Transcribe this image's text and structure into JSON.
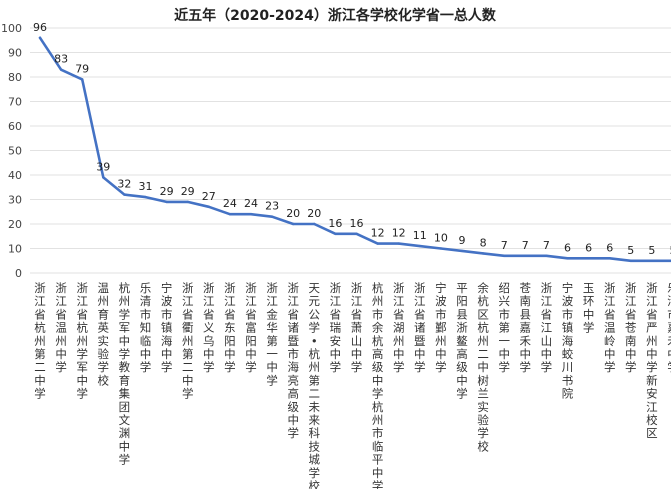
{
  "chart_data": {
    "type": "line",
    "title": "近五年（2020-2024）浙江各学校化学省一总人数",
    "xlabel": "",
    "ylabel": "",
    "ylim": [
      0,
      100
    ],
    "yticks": [
      0,
      10,
      20,
      30,
      40,
      50,
      60,
      70,
      80,
      90,
      100
    ],
    "grid": true,
    "legend": "none",
    "colors": {
      "line": "#4472c4"
    },
    "categories": [
      "浙江省杭州第二中学",
      "浙江省温州中学",
      "浙江省杭州学军中学",
      "温州育英实验学校",
      "杭州学军中学教育集团文渊中学",
      "乐清市知临中学",
      "宁波市镇海中学",
      "浙江省衢州第二中学",
      "浙江省义乌中学",
      "浙江省东阳中学",
      "浙江省富阳中学",
      "浙江金华第一中学",
      "浙江省诸暨市海亮高级中学",
      "天元公学•杭州第二未来科技城学校",
      "浙江省瑞安中学",
      "浙江省萧山中学",
      "杭州市余杭高级中学杭州市临平中学",
      "浙江省湖州中学",
      "浙江省诸暨中学",
      "宁波市鄞州中学",
      "平阳县浙鳌高级中学",
      "余杭区杭州二中树兰实验学校",
      "绍兴市第一中学",
      "苍南县嘉禾中学",
      "浙江省江山中学",
      "宁波市镇海蛟川书院",
      "玉环中学",
      "浙江省温岭中学",
      "浙江省苍南中学",
      "浙江省严州中学新安江校区",
      "乐清市嘉禾中学"
    ],
    "series": [
      {
        "values": [
          96,
          83,
          79,
          39,
          32,
          31,
          29,
          29,
          27,
          24,
          24,
          23,
          20,
          20,
          16,
          16,
          12,
          12,
          11,
          10,
          9,
          8,
          7,
          7,
          7,
          6,
          6,
          6,
          5,
          5,
          5
        ]
      }
    ]
  }
}
